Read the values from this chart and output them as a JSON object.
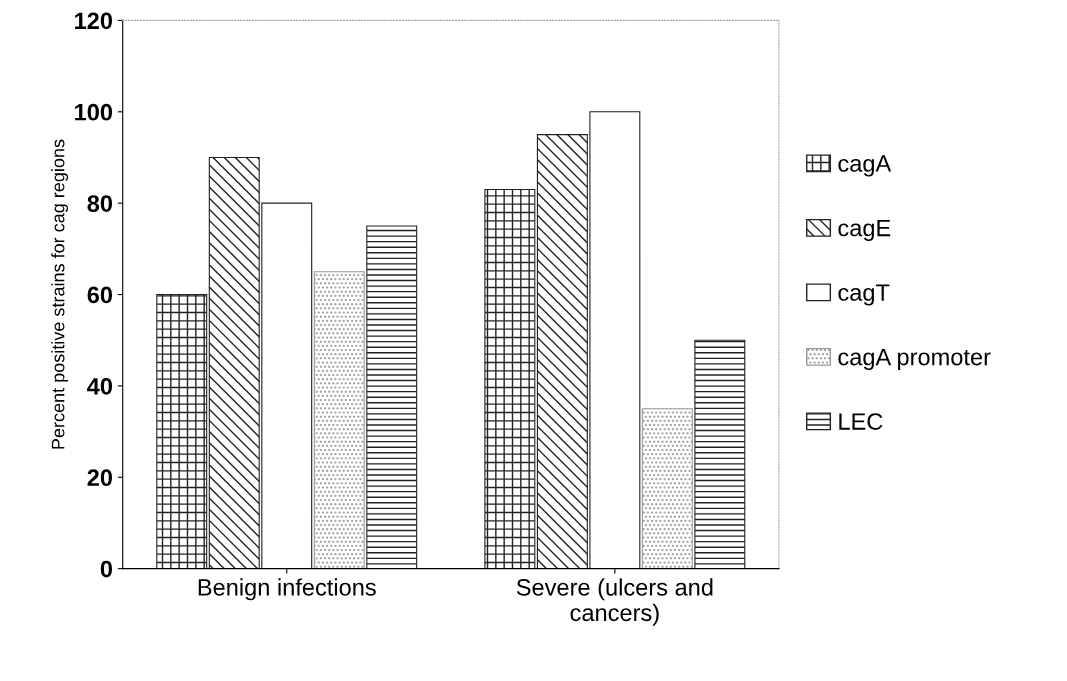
{
  "chart_data": {
    "type": "bar",
    "ylabel": "Percent positive strains for cag regions",
    "categories": [
      "Benign infections",
      "Severe (ulcers and\ncancers)"
    ],
    "series": [
      {
        "name": "cagA",
        "color": "#222222",
        "values": [
          60,
          83
        ]
      },
      {
        "name": "cagE",
        "color": "#222222",
        "values": [
          90,
          95
        ]
      },
      {
        "name": "cagT",
        "color": "#222222",
        "values": [
          80,
          100
        ]
      },
      {
        "name": "cagA promoter",
        "color": "#999999",
        "values": [
          65,
          35
        ]
      },
      {
        "name": "LEC",
        "color": "#222222",
        "values": [
          75,
          50
        ]
      }
    ],
    "ylim": [
      0,
      120
    ],
    "yticks": [
      0,
      20,
      40,
      60,
      80,
      100,
      120
    ],
    "grid": false,
    "legend": "right"
  }
}
